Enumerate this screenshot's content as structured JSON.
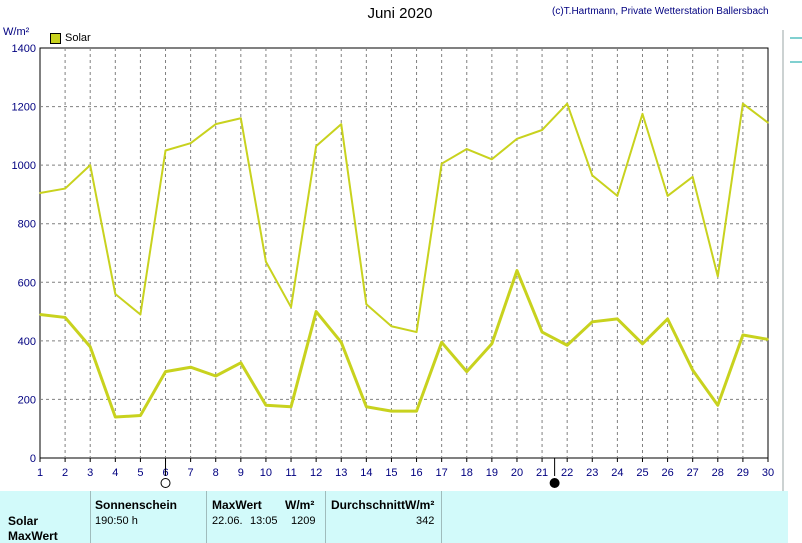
{
  "title": "Juni 2020",
  "credit": "(c)T.Hartmann, Private Wetterstation Ballersbach",
  "unit": "W/m²",
  "legend": {
    "label": "Solar",
    "color": "#c8d21e"
  },
  "chart_data": {
    "type": "line",
    "title": "Juni 2020",
    "ylabel": "W/m²",
    "xlabel": "",
    "ylim": [
      0,
      1400
    ],
    "xlim": [
      1,
      30
    ],
    "yticks": [
      0,
      200,
      400,
      600,
      800,
      1000,
      1200,
      1400
    ],
    "x": [
      1,
      2,
      3,
      4,
      5,
      6,
      7,
      8,
      9,
      10,
      11,
      12,
      13,
      14,
      15,
      16,
      17,
      18,
      19,
      20,
      21,
      22,
      23,
      24,
      25,
      26,
      27,
      28,
      29,
      30
    ],
    "grid": true,
    "legend_position": "top-left",
    "series": [
      {
        "name": "Solar",
        "role": "max",
        "color": "#c8d21e",
        "values": [
          905,
          920,
          1000,
          560,
          490,
          1050,
          1075,
          1140,
          1160,
          670,
          515,
          1065,
          1140,
          525,
          450,
          430,
          1005,
          1055,
          1020,
          1090,
          1120,
          1210,
          965,
          895,
          1175,
          895,
          960,
          620,
          1210,
          1145
        ]
      },
      {
        "role": "mean",
        "color": "#c8d21e",
        "values": [
          490,
          480,
          380,
          140,
          145,
          295,
          310,
          280,
          325,
          180,
          175,
          500,
          395,
          175,
          160,
          160,
          395,
          295,
          390,
          640,
          430,
          385,
          465,
          475,
          390,
          475,
          300,
          180,
          420,
          405
        ]
      }
    ],
    "moon_markers": [
      {
        "day": 6,
        "phase": "full"
      },
      {
        "day": 21.5,
        "phase": "new"
      }
    ]
  },
  "table": {
    "row_labels": [
      "Solar",
      "MaxWert"
    ],
    "headers": {
      "sunshine": "Sonnenschein",
      "maxwert": "MaxWert",
      "maxwert_unit": "W/m²",
      "avg": "DurchschnittW/m²"
    },
    "values": {
      "sunshine": "190:50 h",
      "max_date": "22.06.",
      "max_time": "13:05",
      "max_value": "1209",
      "avg_value": "342"
    }
  }
}
